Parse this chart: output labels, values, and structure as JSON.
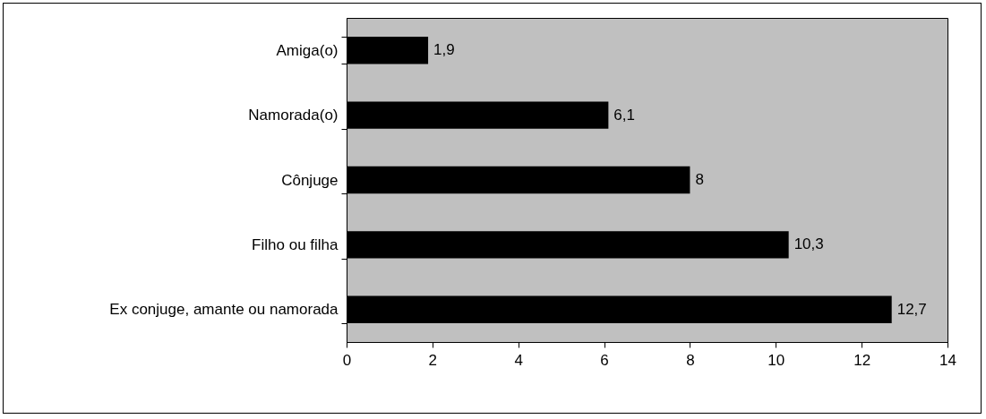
{
  "chart_data": {
    "type": "bar",
    "orientation": "horizontal",
    "categories": [
      "Amiga(o)",
      "Namorada(o)",
      "Cônjuge",
      "Filho ou filha",
      "Ex conjuge, amante ou namorada"
    ],
    "values": [
      1.9,
      6.1,
      8,
      10.3,
      12.7
    ],
    "value_labels": [
      "1,9",
      "6,1",
      "8",
      "10,3",
      "12,7"
    ],
    "color": "#000000",
    "xlim": [
      0,
      14
    ],
    "xticks": [
      0,
      2,
      4,
      6,
      8,
      10,
      12,
      14
    ],
    "grid": false
  }
}
